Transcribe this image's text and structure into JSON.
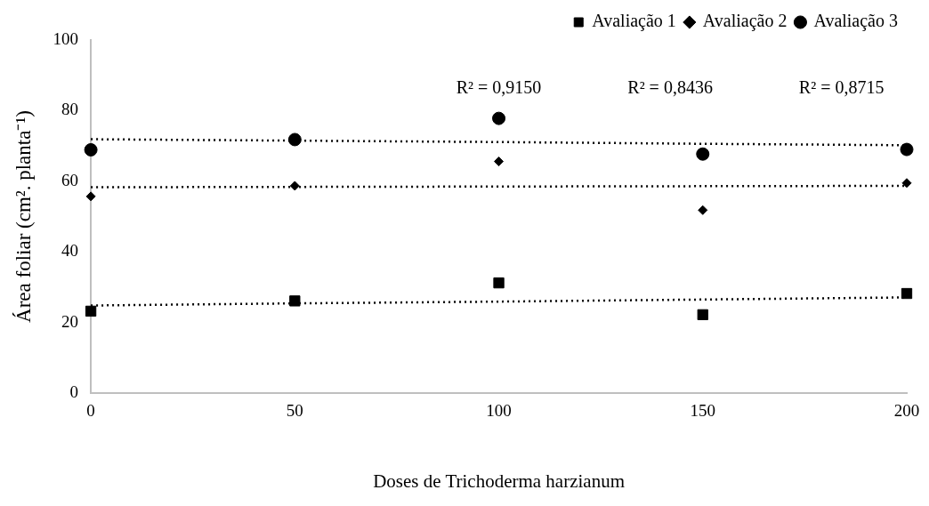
{
  "chart_data": {
    "type": "scatter",
    "xlabel": "Doses de Trichoderma harzianum",
    "ylabel": "Área foliar (cm². planta⁻¹)",
    "x": [
      0,
      50,
      100,
      150,
      200
    ],
    "series": [
      {
        "name": "Avaliação 1",
        "color": "#000000",
        "marker": "square",
        "values": [
          23.2,
          26.1,
          31.2,
          22.2,
          28.2
        ]
      },
      {
        "name": "Avaliação 2",
        "color": "#000000",
        "marker": "diamond",
        "values": [
          55.7,
          58.7,
          65.6,
          51.8,
          59.5
        ]
      },
      {
        "name": "Avaliação 3",
        "color": "#000000",
        "marker": "circle",
        "values": [
          68.9,
          71.8,
          77.8,
          67.7,
          69.0
        ]
      },
      {
        "type": "line",
        "color": "#000000",
        "marker": "none",
        "line_style": "dotted",
        "values": [
          24.8,
          25.4,
          25.9,
          26.5,
          27.1
        ]
      },
      {
        "type": "line",
        "color": "#000000",
        "marker": "none",
        "line_style": "dotted",
        "values": [
          58.3,
          58.4,
          58.5,
          58.6,
          58.7
        ]
      },
      {
        "type": "line",
        "color": "#000000",
        "marker": "none",
        "line_style": "dotted",
        "values": [
          71.9,
          71.5,
          71.1,
          70.6,
          70.2
        ]
      }
    ],
    "annotations": [
      "R² = 0,9150",
      "R² = 0,8436",
      "R² = 0,8715"
    ],
    "xlim": [
      0,
      200
    ],
    "xticks": [
      0,
      50,
      100,
      150,
      200
    ],
    "ylim": [
      0,
      100
    ],
    "yticks": [
      0,
      20,
      40,
      60,
      80,
      100
    ],
    "grid": false,
    "legend": "top right"
  }
}
